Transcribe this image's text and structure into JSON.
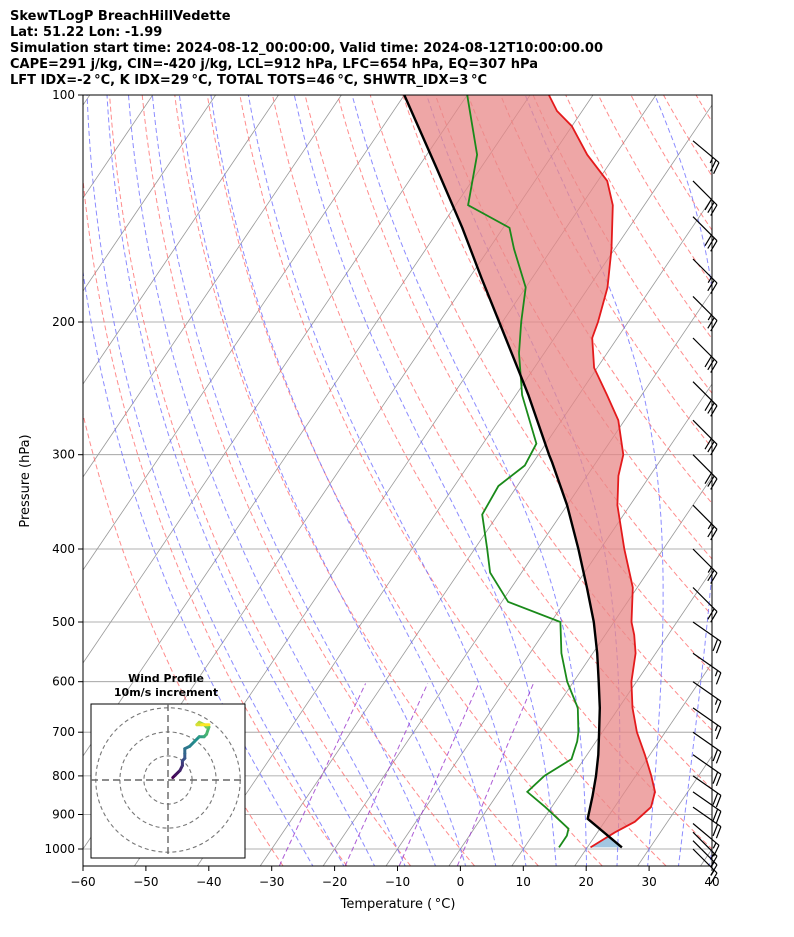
{
  "header": {
    "line1": "SkewTLogP BreachHillVedette",
    "line2": "Lat: 51.22   Lon: -1.99",
    "line3": "Simulation start time: 2024-08-12_00:00:00, Valid time: 2024-08-12T10:00:00.00",
    "line4": "CAPE=291 j/kg, CIN=-420 j/kg, LCL=912 hPa, LFC=654 hPa, EQ=307 hPa",
    "line5": "LFT IDX=-2 °C, K IDX=29 °C, TOTAL TOTS=46 °C, SHWTR_IDX=3 °C"
  },
  "chart_data": {
    "type": "line",
    "chart_kind": "skew-t log-p",
    "xlabel": "Temperature ( °C)",
    "ylabel": "Pressure (hPa)",
    "xlim": [
      -60,
      40
    ],
    "ylim_hpa": [
      1050,
      100
    ],
    "x_ticks": [
      -60,
      -50,
      -40,
      -30,
      -20,
      -10,
      0,
      10,
      20,
      30,
      40
    ],
    "x_tick_labels": [
      "−60",
      "−50",
      "−40",
      "−30",
      "−20",
      "−10",
      "0",
      "10",
      "20",
      "30",
      "40"
    ],
    "y_ticks": [
      1000,
      900,
      800,
      700,
      600,
      500,
      400,
      300,
      200,
      100
    ],
    "y_scale": "log",
    "grid": true,
    "colors": {
      "temperature": "#e41a1c",
      "dewpoint": "#1a8a1a",
      "parcel": "#000000",
      "cape_fill": "#7aaed4",
      "cin_fill": "#e88888",
      "dry_adiabat": "#ff6666",
      "moist_adiabat": "#6666ff",
      "mixing_ratio": "#9933cc",
      "isotherm": "#999999"
    },
    "temperature_profile": [
      {
        "p": 995,
        "t": 20.5
      },
      {
        "p": 950,
        "t": 22.8
      },
      {
        "p": 920,
        "t": 24.8
      },
      {
        "p": 880,
        "t": 25.8
      },
      {
        "p": 840,
        "t": 24.8
      },
      {
        "p": 800,
        "t": 22.5
      },
      {
        "p": 750,
        "t": 19.2
      },
      {
        "p": 700,
        "t": 15.5
      },
      {
        "p": 650,
        "t": 12.2
      },
      {
        "p": 600,
        "t": 9.2
      },
      {
        "p": 550,
        "t": 6.8
      },
      {
        "p": 520,
        "t": 4.6
      },
      {
        "p": 500,
        "t": 2.8
      },
      {
        "p": 450,
        "t": -0.7
      },
      {
        "p": 400,
        "t": -6.2
      },
      {
        "p": 350,
        "t": -12.0
      },
      {
        "p": 320,
        "t": -15.0
      },
      {
        "p": 300,
        "t": -16.5
      },
      {
        "p": 270,
        "t": -21.0
      },
      {
        "p": 250,
        "t": -25.5
      },
      {
        "p": 230,
        "t": -30.5
      },
      {
        "p": 210,
        "t": -34.0
      },
      {
        "p": 200,
        "t": -34.8
      },
      {
        "p": 180,
        "t": -37.0
      },
      {
        "p": 160,
        "t": -40.5
      },
      {
        "p": 140,
        "t": -45.0
      },
      {
        "p": 130,
        "t": -48.5
      },
      {
        "p": 120,
        "t": -54.5
      },
      {
        "p": 110,
        "t": -60.0
      },
      {
        "p": 105,
        "t": -64.0
      },
      {
        "p": 100,
        "t": -67.0
      }
    ],
    "dewpoint_profile": [
      {
        "p": 995,
        "t": 15.5
      },
      {
        "p": 960,
        "t": 15.5
      },
      {
        "p": 940,
        "t": 15.0
      },
      {
        "p": 880,
        "t": 9.0
      },
      {
        "p": 840,
        "t": 4.5
      },
      {
        "p": 800,
        "t": 5.5
      },
      {
        "p": 760,
        "t": 8.0
      },
      {
        "p": 720,
        "t": 7.0
      },
      {
        "p": 700,
        "t": 6.2
      },
      {
        "p": 650,
        "t": 3.5
      },
      {
        "p": 600,
        "t": -1.0
      },
      {
        "p": 550,
        "t": -5.0
      },
      {
        "p": 500,
        "t": -8.5
      },
      {
        "p": 470,
        "t": -19.0
      },
      {
        "p": 430,
        "t": -25.0
      },
      {
        "p": 400,
        "t": -28.0
      },
      {
        "p": 360,
        "t": -32.5
      },
      {
        "p": 330,
        "t": -33.0
      },
      {
        "p": 310,
        "t": -31.0
      },
      {
        "p": 290,
        "t": -31.5
      },
      {
        "p": 250,
        "t": -39.0
      },
      {
        "p": 220,
        "t": -44.0
      },
      {
        "p": 200,
        "t": -47.0
      },
      {
        "p": 180,
        "t": -50.0
      },
      {
        "p": 160,
        "t": -56.0
      },
      {
        "p": 150,
        "t": -59.0
      },
      {
        "p": 140,
        "t": -68.0
      },
      {
        "p": 120,
        "t": -72.0
      },
      {
        "p": 100,
        "t": -80.0
      }
    ],
    "parcel_profile": [
      {
        "p": 995,
        "t": 25.5
      },
      {
        "p": 912,
        "t": 17.0
      },
      {
        "p": 850,
        "t": 15.3
      },
      {
        "p": 800,
        "t": 13.7
      },
      {
        "p": 750,
        "t": 11.8
      },
      {
        "p": 700,
        "t": 9.5
      },
      {
        "p": 650,
        "t": 7.0
      },
      {
        "p": 600,
        "t": 4.0
      },
      {
        "p": 550,
        "t": 0.7
      },
      {
        "p": 500,
        "t": -3.2
      },
      {
        "p": 450,
        "t": -8.0
      },
      {
        "p": 400,
        "t": -13.5
      },
      {
        "p": 350,
        "t": -20.0
      },
      {
        "p": 307,
        "t": -27.0
      },
      {
        "p": 300,
        "t": -28.3
      },
      {
        "p": 250,
        "t": -38.0
      },
      {
        "p": 200,
        "t": -50.5
      },
      {
        "p": 175,
        "t": -58.0
      },
      {
        "p": 150,
        "t": -66.5
      },
      {
        "p": 125,
        "t": -77.0
      },
      {
        "p": 100,
        "t": -90.0
      }
    ],
    "wind_barbs": [
      {
        "p": 1000,
        "speed_kt": 15,
        "dir_deg": 225
      },
      {
        "p": 975,
        "speed_kt": 15,
        "dir_deg": 225
      },
      {
        "p": 950,
        "speed_kt": 15,
        "dir_deg": 225
      },
      {
        "p": 925,
        "speed_kt": 15,
        "dir_deg": 230
      },
      {
        "p": 880,
        "speed_kt": 20,
        "dir_deg": 235
      },
      {
        "p": 840,
        "speed_kt": 20,
        "dir_deg": 235
      },
      {
        "p": 800,
        "speed_kt": 20,
        "dir_deg": 235
      },
      {
        "p": 750,
        "speed_kt": 20,
        "dir_deg": 235
      },
      {
        "p": 700,
        "speed_kt": 20,
        "dir_deg": 235
      },
      {
        "p": 650,
        "speed_kt": 15,
        "dir_deg": 235
      },
      {
        "p": 600,
        "speed_kt": 15,
        "dir_deg": 235
      },
      {
        "p": 550,
        "speed_kt": 15,
        "dir_deg": 235
      },
      {
        "p": 500,
        "speed_kt": 20,
        "dir_deg": 235
      },
      {
        "p": 450,
        "speed_kt": 20,
        "dir_deg": 225
      },
      {
        "p": 400,
        "speed_kt": 25,
        "dir_deg": 225
      },
      {
        "p": 350,
        "speed_kt": 25,
        "dir_deg": 225
      },
      {
        "p": 300,
        "speed_kt": 30,
        "dir_deg": 225
      },
      {
        "p": 270,
        "speed_kt": 30,
        "dir_deg": 225
      },
      {
        "p": 240,
        "speed_kt": 30,
        "dir_deg": 225
      },
      {
        "p": 210,
        "speed_kt": 30,
        "dir_deg": 225
      },
      {
        "p": 185,
        "speed_kt": 25,
        "dir_deg": 225
      },
      {
        "p": 165,
        "speed_kt": 25,
        "dir_deg": 225
      },
      {
        "p": 145,
        "speed_kt": 30,
        "dir_deg": 225
      },
      {
        "p": 130,
        "speed_kt": 30,
        "dir_deg": 225
      },
      {
        "p": 115,
        "speed_kt": 25,
        "dir_deg": 230
      }
    ]
  },
  "inset": {
    "title": "Wind Profile",
    "subtitle": "10m/s increment",
    "rings_ms": [
      10,
      20,
      30
    ],
    "range_ms": 32,
    "hodograph_uv": [
      [
        2,
        1
      ],
      [
        3,
        2
      ],
      [
        5,
        4
      ],
      [
        6,
        6
      ],
      [
        6,
        8
      ],
      [
        7,
        9
      ],
      [
        7,
        11
      ],
      [
        7,
        13
      ],
      [
        9,
        14
      ],
      [
        11,
        16
      ],
      [
        13,
        18
      ],
      [
        15,
        18
      ],
      [
        16,
        19
      ],
      [
        17,
        22
      ],
      [
        16,
        22
      ],
      [
        15,
        23
      ],
      [
        13,
        24
      ],
      [
        12,
        23
      ],
      [
        14,
        23
      ],
      [
        17,
        23
      ]
    ]
  }
}
